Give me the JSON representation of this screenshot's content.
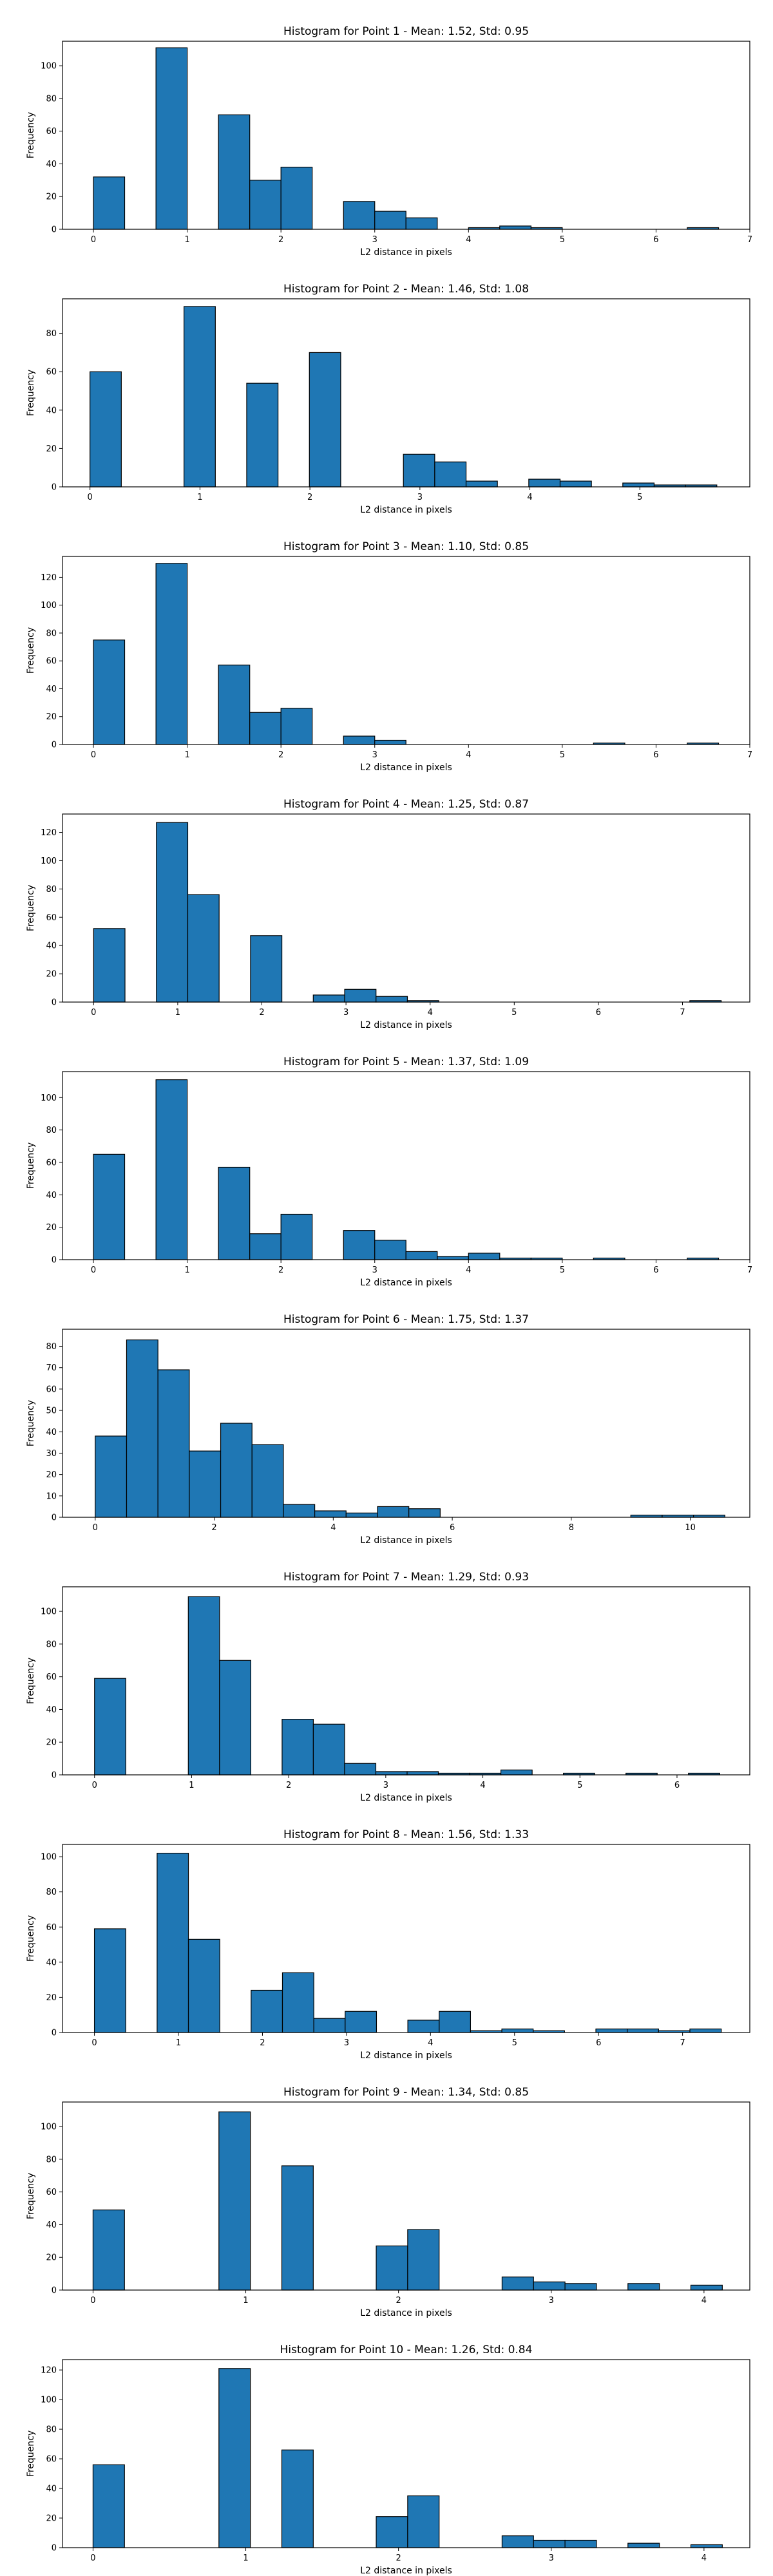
{
  "colors": {
    "bar_fill": "#1f77b4",
    "bar_edge": "#000000",
    "axes": "#000000"
  },
  "chart_data": [
    {
      "type": "bar",
      "title": "Histogram for Point 1 - Mean: 1.52, Std: 0.95",
      "xlabel": "L2 distance in pixels",
      "ylabel": "Frequency",
      "xlim": [
        -0.33,
        7.0
      ],
      "ylim": [
        0,
        115
      ],
      "xticks": [
        0,
        1,
        2,
        3,
        4,
        5,
        6,
        7
      ],
      "yticks": [
        0,
        20,
        40,
        60,
        80,
        100
      ],
      "grid": false,
      "bins": [
        {
          "x0": 0.0,
          "x1": 0.333,
          "count": 32
        },
        {
          "x0": 0.667,
          "x1": 1.0,
          "count": 111
        },
        {
          "x0": 1.333,
          "x1": 1.667,
          "count": 70
        },
        {
          "x0": 1.667,
          "x1": 2.0,
          "count": 30
        },
        {
          "x0": 2.0,
          "x1": 2.333,
          "count": 38
        },
        {
          "x0": 2.667,
          "x1": 3.0,
          "count": 17
        },
        {
          "x0": 3.0,
          "x1": 3.333,
          "count": 11
        },
        {
          "x0": 3.333,
          "x1": 3.667,
          "count": 7
        },
        {
          "x0": 4.0,
          "x1": 4.333,
          "count": 1
        },
        {
          "x0": 4.333,
          "x1": 4.667,
          "count": 2
        },
        {
          "x0": 4.667,
          "x1": 5.0,
          "count": 1
        },
        {
          "x0": 6.333,
          "x1": 6.667,
          "count": 1
        }
      ]
    },
    {
      "type": "bar",
      "title": "Histogram for Point 2 - Mean: 1.46, Std: 1.08",
      "xlabel": "L2 distance in pixels",
      "ylabel": "Frequency",
      "xlim": [
        -0.25,
        6.0
      ],
      "ylim": [
        0,
        98
      ],
      "xticks": [
        0,
        1,
        2,
        3,
        4,
        5
      ],
      "yticks": [
        0,
        20,
        40,
        60,
        80
      ],
      "grid": false,
      "bins": [
        {
          "x0": 0.0,
          "x1": 0.285,
          "count": 60
        },
        {
          "x0": 0.855,
          "x1": 1.14,
          "count": 94
        },
        {
          "x0": 1.425,
          "x1": 1.71,
          "count": 54
        },
        {
          "x0": 1.995,
          "x1": 2.28,
          "count": 70
        },
        {
          "x0": 2.85,
          "x1": 3.135,
          "count": 17
        },
        {
          "x0": 3.135,
          "x1": 3.42,
          "count": 13
        },
        {
          "x0": 3.42,
          "x1": 3.705,
          "count": 3
        },
        {
          "x0": 3.99,
          "x1": 4.275,
          "count": 4
        },
        {
          "x0": 4.275,
          "x1": 4.56,
          "count": 3
        },
        {
          "x0": 4.845,
          "x1": 5.13,
          "count": 2
        },
        {
          "x0": 5.13,
          "x1": 5.415,
          "count": 1
        },
        {
          "x0": 5.415,
          "x1": 5.7,
          "count": 1
        }
      ]
    },
    {
      "type": "bar",
      "title": "Histogram for Point 3 - Mean: 1.10, Std: 0.85",
      "xlabel": "L2 distance in pixels",
      "ylabel": "Frequency",
      "xlim": [
        -0.33,
        7.0
      ],
      "ylim": [
        0,
        135
      ],
      "xticks": [
        0,
        1,
        2,
        3,
        4,
        5,
        6,
        7
      ],
      "yticks": [
        0,
        20,
        40,
        60,
        80,
        100,
        120
      ],
      "grid": false,
      "bins": [
        {
          "x0": 0.0,
          "x1": 0.333,
          "count": 75
        },
        {
          "x0": 0.667,
          "x1": 1.0,
          "count": 130
        },
        {
          "x0": 1.333,
          "x1": 1.667,
          "count": 57
        },
        {
          "x0": 1.667,
          "x1": 2.0,
          "count": 23
        },
        {
          "x0": 2.0,
          "x1": 2.333,
          "count": 26
        },
        {
          "x0": 2.667,
          "x1": 3.0,
          "count": 6
        },
        {
          "x0": 3.0,
          "x1": 3.333,
          "count": 3
        },
        {
          "x0": 5.333,
          "x1": 5.667,
          "count": 1
        },
        {
          "x0": 6.333,
          "x1": 6.667,
          "count": 1
        }
      ]
    },
    {
      "type": "bar",
      "title": "Histogram for Point 4 - Mean: 1.25, Std: 0.87",
      "xlabel": "L2 distance in pixels",
      "ylabel": "Frequency",
      "xlim": [
        -0.37,
        7.8
      ],
      "ylim": [
        0,
        133
      ],
      "xticks": [
        0,
        1,
        2,
        3,
        4,
        5,
        6,
        7
      ],
      "yticks": [
        0,
        20,
        40,
        60,
        80,
        100,
        120
      ],
      "grid": false,
      "bins": [
        {
          "x0": 0.0,
          "x1": 0.373,
          "count": 52
        },
        {
          "x0": 0.746,
          "x1": 1.119,
          "count": 127
        },
        {
          "x0": 1.119,
          "x1": 1.492,
          "count": 76
        },
        {
          "x0": 1.865,
          "x1": 2.238,
          "count": 47
        },
        {
          "x0": 2.611,
          "x1": 2.984,
          "count": 5
        },
        {
          "x0": 2.984,
          "x1": 3.357,
          "count": 9
        },
        {
          "x0": 3.357,
          "x1": 3.73,
          "count": 4
        },
        {
          "x0": 3.73,
          "x1": 4.103,
          "count": 1
        },
        {
          "x0": 7.087,
          "x1": 7.46,
          "count": 1
        }
      ]
    },
    {
      "type": "bar",
      "title": "Histogram for Point 5 - Mean: 1.37, Std: 1.09",
      "xlabel": "L2 distance in pixels",
      "ylabel": "Frequency",
      "xlim": [
        -0.33,
        7.0
      ],
      "ylim": [
        0,
        116
      ],
      "xticks": [
        0,
        1,
        2,
        3,
        4,
        5,
        6,
        7
      ],
      "yticks": [
        0,
        20,
        40,
        60,
        80,
        100
      ],
      "grid": false,
      "bins": [
        {
          "x0": 0.0,
          "x1": 0.333,
          "count": 65
        },
        {
          "x0": 0.667,
          "x1": 1.0,
          "count": 111
        },
        {
          "x0": 1.333,
          "x1": 1.667,
          "count": 57
        },
        {
          "x0": 1.667,
          "x1": 2.0,
          "count": 16
        },
        {
          "x0": 2.0,
          "x1": 2.333,
          "count": 28
        },
        {
          "x0": 2.667,
          "x1": 3.0,
          "count": 18
        },
        {
          "x0": 3.0,
          "x1": 3.333,
          "count": 12
        },
        {
          "x0": 3.333,
          "x1": 3.667,
          "count": 5
        },
        {
          "x0": 3.667,
          "x1": 4.0,
          "count": 2
        },
        {
          "x0": 4.0,
          "x1": 4.333,
          "count": 4
        },
        {
          "x0": 4.333,
          "x1": 4.667,
          "count": 1
        },
        {
          "x0": 4.667,
          "x1": 5.0,
          "count": 1
        },
        {
          "x0": 5.333,
          "x1": 5.667,
          "count": 1
        },
        {
          "x0": 6.333,
          "x1": 6.667,
          "count": 1
        }
      ]
    },
    {
      "type": "bar",
      "title": "Histogram for Point 6 - Mean: 1.75, Std: 1.37",
      "xlabel": "L2 distance in pixels",
      "ylabel": "Frequency",
      "xlim": [
        -0.55,
        11.0
      ],
      "ylim": [
        0,
        88
      ],
      "xticks": [
        0,
        2,
        4,
        6,
        8,
        10
      ],
      "yticks": [
        0,
        10,
        20,
        30,
        40,
        50,
        60,
        70,
        80
      ],
      "grid": false,
      "bins": [
        {
          "x0": 0.0,
          "x1": 0.527,
          "count": 38
        },
        {
          "x0": 0.527,
          "x1": 1.054,
          "count": 83
        },
        {
          "x0": 1.054,
          "x1": 1.581,
          "count": 69
        },
        {
          "x0": 1.581,
          "x1": 2.108,
          "count": 31
        },
        {
          "x0": 2.108,
          "x1": 2.635,
          "count": 44
        },
        {
          "x0": 2.635,
          "x1": 3.162,
          "count": 34
        },
        {
          "x0": 3.162,
          "x1": 3.689,
          "count": 6
        },
        {
          "x0": 3.689,
          "x1": 4.216,
          "count": 3
        },
        {
          "x0": 4.216,
          "x1": 4.743,
          "count": 2
        },
        {
          "x0": 4.743,
          "x1": 5.27,
          "count": 5
        },
        {
          "x0": 5.27,
          "x1": 5.797,
          "count": 4
        },
        {
          "x0": 9.0,
          "x1": 9.527,
          "count": 1
        },
        {
          "x0": 9.527,
          "x1": 10.054,
          "count": 1
        },
        {
          "x0": 10.054,
          "x1": 10.581,
          "count": 1
        }
      ]
    },
    {
      "type": "bar",
      "title": "Histogram for Point 7 - Mean: 1.29, Std: 0.93",
      "xlabel": "L2 distance in pixels",
      "ylabel": "Frequency",
      "xlim": [
        -0.33,
        6.75
      ],
      "ylim": [
        0,
        115
      ],
      "xticks": [
        0,
        1,
        2,
        3,
        4,
        5,
        6
      ],
      "yticks": [
        0,
        20,
        40,
        60,
        80,
        100
      ],
      "grid": false,
      "bins": [
        {
          "x0": 0.0,
          "x1": 0.322,
          "count": 59
        },
        {
          "x0": 0.966,
          "x1": 1.288,
          "count": 109
        },
        {
          "x0": 1.288,
          "x1": 1.61,
          "count": 70
        },
        {
          "x0": 1.932,
          "x1": 2.254,
          "count": 34
        },
        {
          "x0": 2.254,
          "x1": 2.576,
          "count": 31
        },
        {
          "x0": 2.576,
          "x1": 2.898,
          "count": 7
        },
        {
          "x0": 2.898,
          "x1": 3.22,
          "count": 2
        },
        {
          "x0": 3.22,
          "x1": 3.542,
          "count": 2
        },
        {
          "x0": 3.542,
          "x1": 3.864,
          "count": 1
        },
        {
          "x0": 3.864,
          "x1": 4.186,
          "count": 1
        },
        {
          "x0": 4.186,
          "x1": 4.508,
          "count": 3
        },
        {
          "x0": 4.83,
          "x1": 5.152,
          "count": 1
        },
        {
          "x0": 5.474,
          "x1": 5.796,
          "count": 1
        },
        {
          "x0": 6.118,
          "x1": 6.44,
          "count": 1
        }
      ]
    },
    {
      "type": "bar",
      "title": "Histogram for Point 8 - Mean: 1.56, Std: 1.33",
      "xlabel": "L2 distance in pixels",
      "ylabel": "Frequency",
      "xlim": [
        -0.38,
        7.8
      ],
      "ylim": [
        0,
        107
      ],
      "xticks": [
        0,
        1,
        2,
        3,
        4,
        5,
        6,
        7
      ],
      "yticks": [
        0,
        20,
        40,
        60,
        80,
        100
      ],
      "grid": false,
      "bins": [
        {
          "x0": 0.0,
          "x1": 0.373,
          "count": 59
        },
        {
          "x0": 0.746,
          "x1": 1.119,
          "count": 102
        },
        {
          "x0": 1.119,
          "x1": 1.492,
          "count": 53
        },
        {
          "x0": 1.865,
          "x1": 2.238,
          "count": 24
        },
        {
          "x0": 2.238,
          "x1": 2.611,
          "count": 34
        },
        {
          "x0": 2.611,
          "x1": 2.984,
          "count": 8
        },
        {
          "x0": 2.984,
          "x1": 3.357,
          "count": 12
        },
        {
          "x0": 3.73,
          "x1": 4.103,
          "count": 7
        },
        {
          "x0": 4.103,
          "x1": 4.476,
          "count": 12
        },
        {
          "x0": 4.476,
          "x1": 4.849,
          "count": 1
        },
        {
          "x0": 4.849,
          "x1": 5.222,
          "count": 2
        },
        {
          "x0": 5.222,
          "x1": 5.595,
          "count": 1
        },
        {
          "x0": 5.968,
          "x1": 6.341,
          "count": 2
        },
        {
          "x0": 6.341,
          "x1": 6.714,
          "count": 2
        },
        {
          "x0": 6.714,
          "x1": 7.087,
          "count": 1
        },
        {
          "x0": 7.087,
          "x1": 7.46,
          "count": 2
        }
      ]
    },
    {
      "type": "bar",
      "title": "Histogram for Point 9 - Mean: 1.34, Std: 0.85",
      "xlabel": "L2 distance in pixels",
      "ylabel": "Frequency",
      "xlim": [
        -0.2,
        4.3
      ],
      "ylim": [
        0,
        115
      ],
      "xticks": [
        0,
        1,
        2,
        3,
        4
      ],
      "yticks": [
        0,
        20,
        40,
        60,
        80,
        100
      ],
      "grid": false,
      "bins": [
        {
          "x0": 0.0,
          "x1": 0.206,
          "count": 49
        },
        {
          "x0": 0.824,
          "x1": 1.03,
          "count": 109
        },
        {
          "x0": 1.236,
          "x1": 1.442,
          "count": 76
        },
        {
          "x0": 1.854,
          "x1": 2.06,
          "count": 27
        },
        {
          "x0": 2.06,
          "x1": 2.266,
          "count": 37
        },
        {
          "x0": 2.678,
          "x1": 2.884,
          "count": 8
        },
        {
          "x0": 2.884,
          "x1": 3.09,
          "count": 5
        },
        {
          "x0": 3.09,
          "x1": 3.296,
          "count": 4
        },
        {
          "x0": 3.502,
          "x1": 3.708,
          "count": 4
        },
        {
          "x0": 3.914,
          "x1": 4.12,
          "count": 3
        }
      ]
    },
    {
      "type": "bar",
      "title": "Histogram for Point 10 - Mean: 1.26, Std: 0.84",
      "xlabel": "L2 distance in pixels",
      "ylabel": "Frequency",
      "xlim": [
        -0.2,
        4.3
      ],
      "ylim": [
        0,
        127
      ],
      "xticks": [
        0,
        1,
        2,
        3,
        4
      ],
      "yticks": [
        0,
        20,
        40,
        60,
        80,
        100,
        120
      ],
      "grid": false,
      "bins": [
        {
          "x0": 0.0,
          "x1": 0.206,
          "count": 56
        },
        {
          "x0": 0.824,
          "x1": 1.03,
          "count": 121
        },
        {
          "x0": 1.236,
          "x1": 1.442,
          "count": 66
        },
        {
          "x0": 1.854,
          "x1": 2.06,
          "count": 21
        },
        {
          "x0": 2.06,
          "x1": 2.266,
          "count": 35
        },
        {
          "x0": 2.678,
          "x1": 2.884,
          "count": 8
        },
        {
          "x0": 2.884,
          "x1": 3.09,
          "count": 5
        },
        {
          "x0": 3.09,
          "x1": 3.296,
          "count": 5
        },
        {
          "x0": 3.502,
          "x1": 3.708,
          "count": 3
        },
        {
          "x0": 3.914,
          "x1": 4.12,
          "count": 2
        }
      ]
    }
  ]
}
